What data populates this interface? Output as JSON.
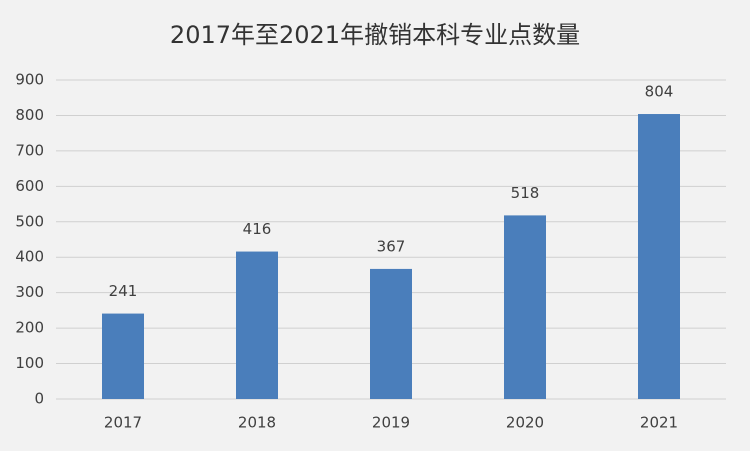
{
  "chart_data": {
    "type": "bar",
    "title": "2017年至2021年撤销本科专业点数量",
    "categories": [
      "2017",
      "2018",
      "2019",
      "2020",
      "2021"
    ],
    "values": [
      241,
      416,
      367,
      518,
      804
    ],
    "color": "#4a7ebb",
    "ylim": [
      0,
      900
    ],
    "yticks": [
      0,
      100,
      200,
      300,
      400,
      500,
      600,
      700,
      800,
      900
    ],
    "grid": true
  }
}
